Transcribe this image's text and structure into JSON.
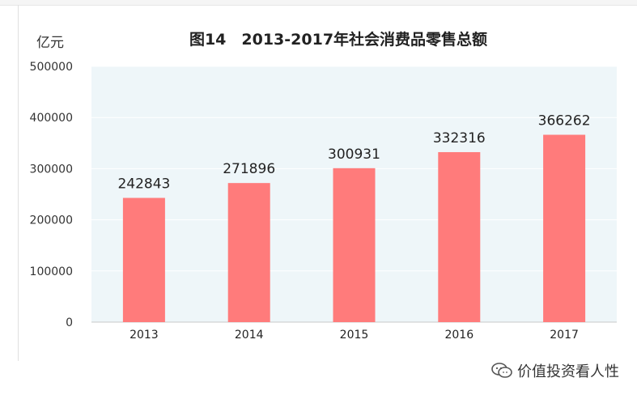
{
  "chart_data": {
    "type": "bar",
    "title": "图14　2013-2017年社会消费品零售总额",
    "ylabel": "亿元",
    "categories": [
      "2013",
      "2014",
      "2015",
      "2016",
      "2017"
    ],
    "values": [
      242843,
      271896,
      300931,
      332316,
      366262
    ],
    "ylim": [
      0,
      500000
    ],
    "yticks": [
      0,
      100000,
      200000,
      300000,
      400000,
      500000
    ],
    "grid": true,
    "bar_color": "#ff7b7b",
    "plot_bg": "#eef6f9"
  },
  "watermark": {
    "text": "价值投资看人性",
    "icon": "wechat-icon"
  }
}
